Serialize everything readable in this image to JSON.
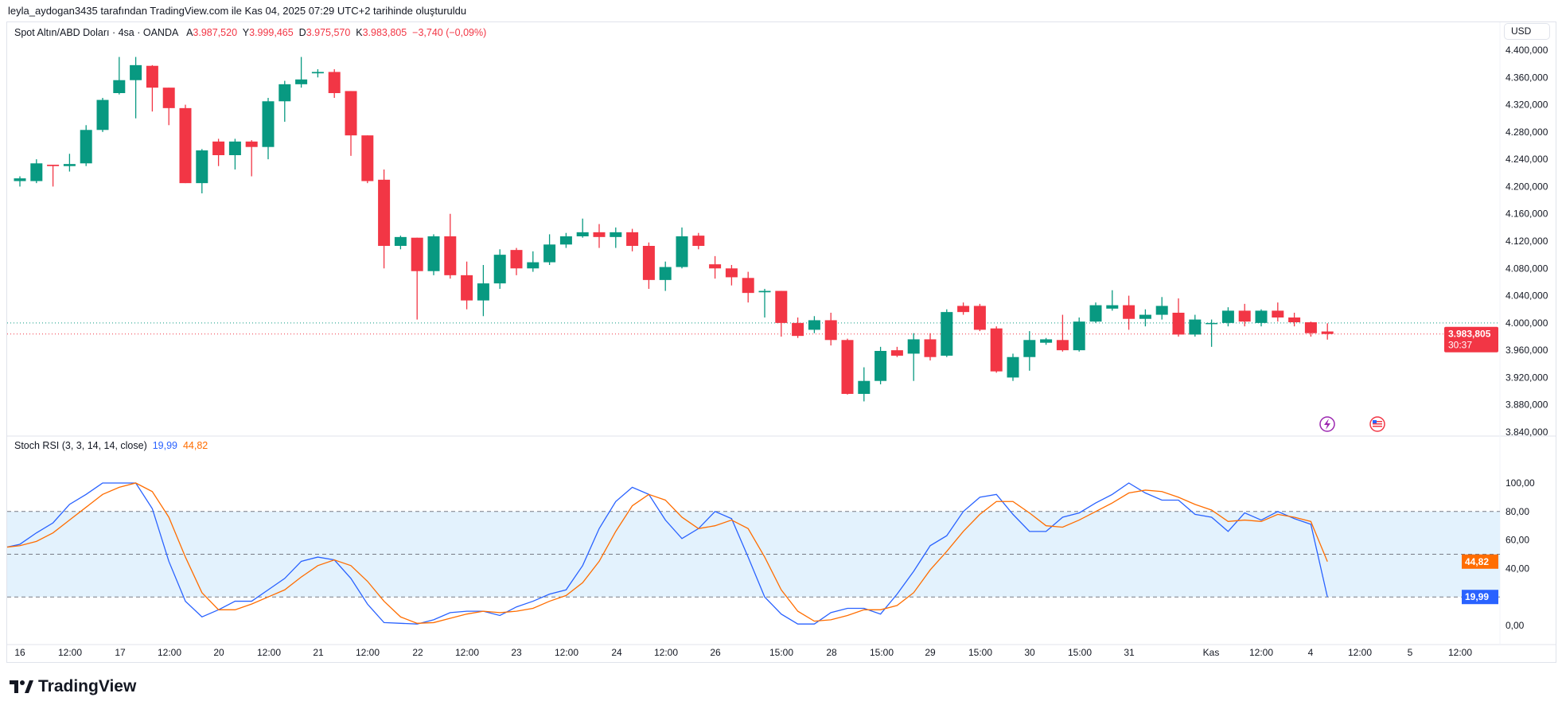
{
  "watermark": "leyla_aydogan3435 tarafından TradingView.com ile Kas 04, 2025 07:29 UTC+2 tarihinde oluşturuldu",
  "header": {
    "symbol": "Spot Altın/ABD Doları · 4sa · OANDA",
    "open_label": "A",
    "open": "3.987,520",
    "high_label": "Y",
    "high": "3.999,465",
    "low_label": "D",
    "low": "3.975,570",
    "close_label": "K",
    "close": "3.983,805",
    "change": "−3,740 (−0,09%)"
  },
  "currency": "USD",
  "price_label": {
    "value": "3.983,805",
    "countdown": "30:37"
  },
  "indicator": {
    "name": "Stoch RSI (3, 3, 14, 14, close)",
    "k_value": "19,99",
    "d_value": "44,82"
  },
  "logo": "TradingView",
  "colors": {
    "up": "#089981",
    "down": "#f23645",
    "k": "#2962ff",
    "d": "#ff6d00",
    "band": "#e3f2fd"
  },
  "chart_data": [
    {
      "type": "candlestick",
      "title": "Spot Altın/ABD Doları · 4sa · OANDA",
      "ylim": [
        3840,
        4400
      ],
      "y_ticks": [
        "4.400,000",
        "4.360,000",
        "4.320,000",
        "4.280,000",
        "4.240,000",
        "4.200,000",
        "4.160,000",
        "4.120,000",
        "4.080,000",
        "4.040,000",
        "4.000,000",
        "3.960,000",
        "3.920,000",
        "3.880,000",
        "3.840,000"
      ],
      "y_tick_values": [
        4400,
        4360,
        4320,
        4280,
        4240,
        4200,
        4160,
        4120,
        4080,
        4040,
        4000,
        3960,
        3920,
        3880,
        3840
      ],
      "x_ticks": [
        "16",
        "12:00",
        "17",
        "12:00",
        "20",
        "12:00",
        "21",
        "12:00",
        "22",
        "12:00",
        "23",
        "12:00",
        "24",
        "12:00",
        "26",
        "15:00",
        "28",
        "15:00",
        "29",
        "15:00",
        "30",
        "15:00",
        "31",
        "Kas",
        "12:00",
        "4",
        "12:00",
        "5",
        "12:00"
      ],
      "previous_close": 4000,
      "last_price": 3983.805,
      "ohlc": [
        [
          4208,
          4215,
          4200,
          4212
        ],
        [
          4208,
          4240,
          4205,
          4234
        ],
        [
          4232,
          4232,
          4200,
          4230
        ],
        [
          4230,
          4248,
          4222,
          4233
        ],
        [
          4234,
          4290,
          4230,
          4283
        ],
        [
          4283,
          4330,
          4280,
          4327
        ],
        [
          4337,
          4390,
          4335,
          4356
        ],
        [
          4356,
          4390,
          4300,
          4378
        ],
        [
          4377,
          4378,
          4310,
          4345
        ],
        [
          4345,
          4345,
          4290,
          4315
        ],
        [
          4315,
          4320,
          4205,
          4205
        ],
        [
          4205,
          4255,
          4190,
          4253
        ],
        [
          4266,
          4270,
          4230,
          4246
        ],
        [
          4246,
          4270,
          4225,
          4266
        ],
        [
          4266,
          4268,
          4215,
          4258
        ],
        [
          4258,
          4330,
          4240,
          4325
        ],
        [
          4325,
          4355,
          4295,
          4350
        ],
        [
          4350,
          4390,
          4345,
          4357
        ],
        [
          4366,
          4372,
          4360,
          4368
        ],
        [
          4368,
          4372,
          4330,
          4337
        ],
        [
          4340,
          4340,
          4245,
          4275
        ],
        [
          4275,
          4275,
          4205,
          4208
        ],
        [
          4210,
          4225,
          4080,
          4113
        ],
        [
          4113,
          4128,
          4108,
          4126
        ],
        [
          4125,
          4125,
          4005,
          4076
        ],
        [
          4076,
          4130,
          4070,
          4127
        ],
        [
          4127,
          4160,
          4065,
          4070
        ],
        [
          4070,
          4090,
          4020,
          4033
        ],
        [
          4033,
          4085,
          4010,
          4058
        ],
        [
          4058,
          4108,
          4050,
          4100
        ],
        [
          4107,
          4110,
          4070,
          4080
        ],
        [
          4080,
          4105,
          4075,
          4089
        ],
        [
          4089,
          4130,
          4085,
          4115
        ],
        [
          4115,
          4132,
          4110,
          4127
        ],
        [
          4127,
          4153,
          4125,
          4133
        ],
        [
          4133,
          4145,
          4110,
          4126
        ],
        [
          4126,
          4140,
          4110,
          4133
        ],
        [
          4133,
          4138,
          4105,
          4113
        ],
        [
          4113,
          4118,
          4050,
          4063
        ],
        [
          4063,
          4090,
          4047,
          4082
        ],
        [
          4082,
          4140,
          4080,
          4127
        ],
        [
          4128,
          4132,
          4108,
          4113
        ],
        [
          4086,
          4098,
          4065,
          4080
        ],
        [
          4080,
          4085,
          4055,
          4067
        ],
        [
          4066,
          4075,
          4030,
          4044
        ],
        [
          4045,
          4050,
          4008,
          4047
        ],
        [
          4047,
          4047,
          3980,
          4000
        ],
        [
          4000,
          4008,
          3978,
          3981
        ],
        [
          3990,
          4010,
          3985,
          4004
        ],
        [
          4004,
          4015,
          3967,
          3975
        ],
        [
          3975,
          3977,
          3895,
          3896
        ],
        [
          3896,
          3935,
          3885,
          3915
        ],
        [
          3915,
          3965,
          3910,
          3959
        ],
        [
          3960,
          3965,
          3950,
          3952
        ],
        [
          3955,
          3985,
          3915,
          3976
        ],
        [
          3976,
          3985,
          3945,
          3950
        ],
        [
          3952,
          4020,
          3950,
          4016
        ],
        [
          4025,
          4030,
          4012,
          4016
        ],
        [
          4025,
          4028,
          3988,
          3990
        ],
        [
          3992,
          3995,
          3927,
          3929
        ],
        [
          3920,
          3955,
          3915,
          3950
        ],
        [
          3950,
          3988,
          3930,
          3975
        ],
        [
          3971,
          3978,
          3968,
          3976
        ],
        [
          3975,
          4012,
          3958,
          3960
        ],
        [
          3960,
          4008,
          3958,
          4002
        ],
        [
          4002,
          4030,
          4000,
          4026
        ],
        [
          4021,
          4048,
          4018,
          4026
        ],
        [
          4026,
          4040,
          3990,
          4006
        ],
        [
          4006,
          4020,
          3995,
          4012
        ],
        [
          4012,
          4038,
          4005,
          4025
        ],
        [
          4015,
          4036,
          3980,
          3983
        ],
        [
          3983,
          4012,
          3980,
          4005
        ],
        [
          4000,
          4005,
          3965,
          4000
        ],
        [
          4000,
          4023,
          3995,
          4018
        ],
        [
          4018,
          4028,
          3995,
          4002
        ],
        [
          4000,
          4020,
          3995,
          4018
        ],
        [
          4018,
          4030,
          4002,
          4008
        ],
        [
          4008,
          4015,
          3995,
          4001
        ],
        [
          4001,
          4002,
          3980,
          3985
        ],
        [
          3987.52,
          3999.465,
          3975.57,
          3983.805
        ]
      ]
    },
    {
      "type": "line",
      "title": "Stoch RSI (3, 3, 14, 14, close)",
      "ylim": [
        0,
        100
      ],
      "y_ticks": [
        "100,00",
        "80,00",
        "60,00",
        "40,00",
        "0,00"
      ],
      "y_tick_values": [
        100,
        80,
        60,
        40,
        0
      ],
      "bands": [
        20,
        50,
        80
      ],
      "series": [
        {
          "name": "K",
          "values": [
            57,
            65,
            72,
            85,
            92,
            100,
            100,
            100,
            82,
            45,
            17,
            6,
            11,
            17,
            17,
            25,
            33,
            45,
            48,
            46,
            33,
            15,
            2,
            1.5,
            1,
            4,
            9,
            10,
            10,
            7,
            13,
            17,
            22,
            25,
            42,
            68,
            87,
            97,
            92,
            74,
            61,
            68,
            80,
            75,
            48,
            20,
            8,
            1,
            1,
            9,
            12,
            12,
            8,
            22,
            38,
            56,
            63,
            80,
            90,
            92,
            78,
            66,
            66,
            76,
            79,
            86,
            92,
            100,
            93,
            88,
            88,
            78,
            76,
            66,
            79,
            74,
            80,
            75,
            71,
            19.99
          ]
        },
        {
          "name": "D",
          "values": [
            56,
            59,
            65,
            74,
            83,
            92,
            97,
            100,
            94,
            76,
            48,
            23,
            11,
            11,
            15,
            20,
            25,
            34,
            42,
            46,
            42,
            31,
            17,
            6,
            1.5,
            2,
            5,
            8,
            10,
            9,
            10,
            12,
            17,
            21,
            30,
            45,
            66,
            84,
            92,
            88,
            76,
            68,
            70,
            74,
            68,
            48,
            25,
            10,
            3,
            4,
            7,
            11,
            11,
            14,
            23,
            39,
            52,
            66,
            78,
            87,
            87,
            79,
            70,
            69,
            74,
            80,
            86,
            93,
            95,
            94,
            90,
            85,
            81,
            73,
            74,
            73,
            78,
            76,
            73,
            44.82
          ]
        }
      ]
    }
  ]
}
